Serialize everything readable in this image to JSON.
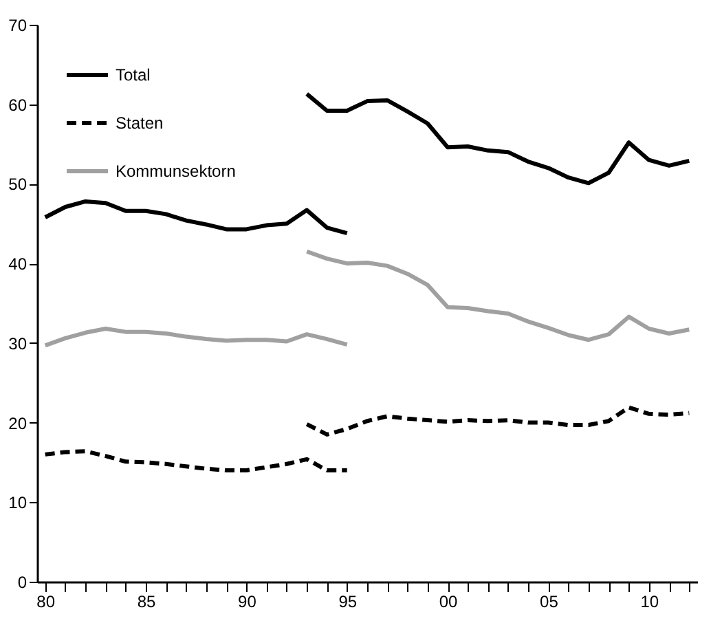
{
  "chart_data": {
    "type": "line",
    "xlim": [
      1979.6,
      2012.4
    ],
    "xticks": [
      {
        "value": 1980,
        "label": "80"
      },
      {
        "value": 1981,
        "label": null
      },
      {
        "value": 1982,
        "label": null
      },
      {
        "value": 1983,
        "label": null
      },
      {
        "value": 1984,
        "label": null
      },
      {
        "value": 1985,
        "label": "85"
      },
      {
        "value": 1986,
        "label": null
      },
      {
        "value": 1987,
        "label": null
      },
      {
        "value": 1988,
        "label": null
      },
      {
        "value": 1989,
        "label": null
      },
      {
        "value": 1990,
        "label": "90"
      },
      {
        "value": 1991,
        "label": null
      },
      {
        "value": 1992,
        "label": null
      },
      {
        "value": 1993,
        "label": null
      },
      {
        "value": 1994,
        "label": null
      },
      {
        "value": 1995,
        "label": "95"
      },
      {
        "value": 1996,
        "label": null
      },
      {
        "value": 1997,
        "label": null
      },
      {
        "value": 1998,
        "label": null
      },
      {
        "value": 1999,
        "label": null
      },
      {
        "value": 2000,
        "label": "00"
      },
      {
        "value": 2001,
        "label": null
      },
      {
        "value": 2002,
        "label": null
      },
      {
        "value": 2003,
        "label": null
      },
      {
        "value": 2004,
        "label": null
      },
      {
        "value": 2005,
        "label": "05"
      },
      {
        "value": 2006,
        "label": null
      },
      {
        "value": 2007,
        "label": null
      },
      {
        "value": 2008,
        "label": null
      },
      {
        "value": 2009,
        "label": null
      },
      {
        "value": 2010,
        "label": "10"
      },
      {
        "value": 2011,
        "label": null
      },
      {
        "value": 2012,
        "label": null
      }
    ],
    "ylim": [
      0,
      70
    ],
    "yticks": [
      0,
      10,
      20,
      30,
      40,
      50,
      60,
      70
    ],
    "grid": false,
    "legend": "top left",
    "marker": "none",
    "series": [
      {
        "name": "Total",
        "color": "#000000",
        "line_style": "solid",
        "x": [
          1980,
          1981,
          1982,
          1983,
          1984,
          1985,
          1986,
          1987,
          1988,
          1989,
          1990,
          1991,
          1992,
          1993,
          1994,
          1995
        ],
        "values": [
          45.8,
          47.1,
          47.8,
          47.6,
          46.6,
          46.6,
          46.2,
          45.4,
          44.9,
          44.3,
          44.3,
          44.8,
          45.0,
          46.7,
          44.5,
          43.8
        ]
      },
      {
        "name": "Staten",
        "color": "#000000",
        "line_style": "dashed",
        "x": [
          1980,
          1981,
          1982,
          1983,
          1984,
          1985,
          1986,
          1987,
          1988,
          1989,
          1990,
          1991,
          1992,
          1993,
          1994,
          1995
        ],
        "values": [
          16.0,
          16.3,
          16.4,
          15.8,
          15.1,
          15.0,
          14.8,
          14.5,
          14.2,
          14.0,
          14.0,
          14.4,
          14.8,
          15.4,
          14.0,
          14.0
        ]
      },
      {
        "name": "Kommunsektorn",
        "color": "#a0a0a0",
        "line_style": "solid",
        "x": [
          1980,
          1981,
          1982,
          1983,
          1984,
          1985,
          1986,
          1987,
          1988,
          1989,
          1990,
          1991,
          1992,
          1993,
          1994,
          1995
        ],
        "values": [
          29.7,
          30.6,
          31.3,
          31.8,
          31.4,
          31.4,
          31.2,
          30.8,
          30.5,
          30.3,
          30.4,
          30.4,
          30.2,
          31.1,
          30.5,
          29.8
        ]
      },
      {
        "color": "#000000",
        "line_style": "solid",
        "x": [
          1993,
          1994,
          1995,
          1996,
          1997,
          1998,
          1999,
          2000,
          2001,
          2002,
          2003,
          2004,
          2005,
          2006,
          2007,
          2008,
          2009,
          2010,
          2011,
          2012
        ],
        "values": [
          61.3,
          59.2,
          59.2,
          60.4,
          60.5,
          59.1,
          57.6,
          54.6,
          54.7,
          54.2,
          54.0,
          52.8,
          52.0,
          50.8,
          50.1,
          51.4,
          55.2,
          53.0,
          52.3,
          52.9
        ]
      },
      {
        "color": "#000000",
        "line_style": "dashed",
        "x": [
          1993,
          1994,
          1995,
          1996,
          1997,
          1998,
          1999,
          2000,
          2001,
          2002,
          2003,
          2004,
          2005,
          2006,
          2007,
          2008,
          2009,
          2010,
          2011,
          2012
        ],
        "values": [
          19.8,
          18.5,
          19.2,
          20.2,
          20.8,
          20.5,
          20.3,
          20.1,
          20.3,
          20.2,
          20.3,
          20.0,
          20.0,
          19.7,
          19.7,
          20.2,
          21.9,
          21.1,
          21.0,
          21.2
        ]
      },
      {
        "color": "#a0a0a0",
        "line_style": "solid",
        "x": [
          1993,
          1994,
          1995,
          1996,
          1997,
          1998,
          1999,
          2000,
          2001,
          2002,
          2003,
          2004,
          2005,
          2006,
          2007,
          2008,
          2009,
          2010,
          2011,
          2012
        ],
        "values": [
          41.5,
          40.6,
          40.0,
          40.1,
          39.7,
          38.7,
          37.3,
          34.5,
          34.4,
          34.0,
          33.7,
          32.7,
          31.9,
          31.0,
          30.4,
          31.1,
          33.3,
          31.8,
          31.2,
          31.7
        ]
      }
    ]
  }
}
